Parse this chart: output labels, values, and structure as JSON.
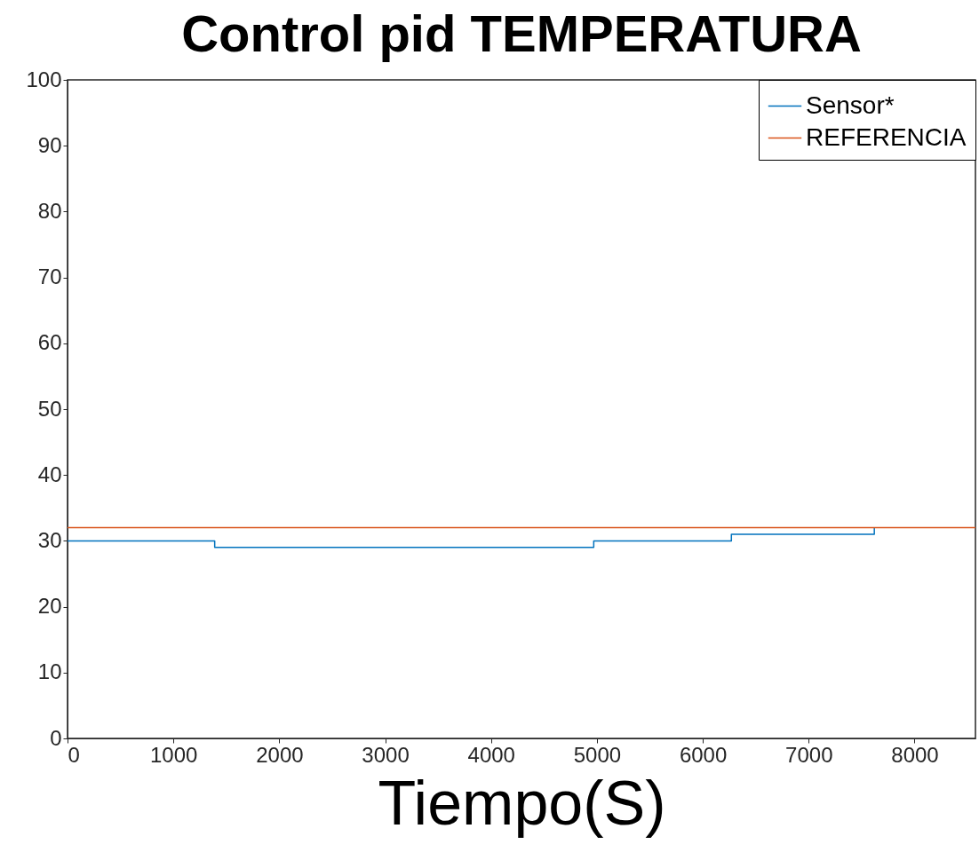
{
  "chart_data": {
    "type": "line",
    "title": "Control pid TEMPERATURA",
    "xlabel": "Tiempo(S)",
    "xlim": [
      0,
      8575
    ],
    "xticks": [
      0,
      1000,
      2000,
      3000,
      4000,
      5000,
      6000,
      7000,
      8000
    ],
    "ylim": [
      0,
      100
    ],
    "yticks": [
      0,
      10,
      20,
      30,
      40,
      50,
      60,
      70,
      80,
      90,
      100
    ],
    "grid": false,
    "legend": "top right",
    "series": [
      {
        "name": "Sensor*",
        "type": "step",
        "color": "#0072bd",
        "x": [
          0,
          1390,
          4970,
          6270,
          7620
        ],
        "values": [
          30,
          29,
          30,
          31,
          32
        ]
      },
      {
        "name": "REFERENCIA",
        "color": "#d95319",
        "x": [
          0,
          8575
        ],
        "values": [
          32,
          32
        ]
      }
    ]
  }
}
